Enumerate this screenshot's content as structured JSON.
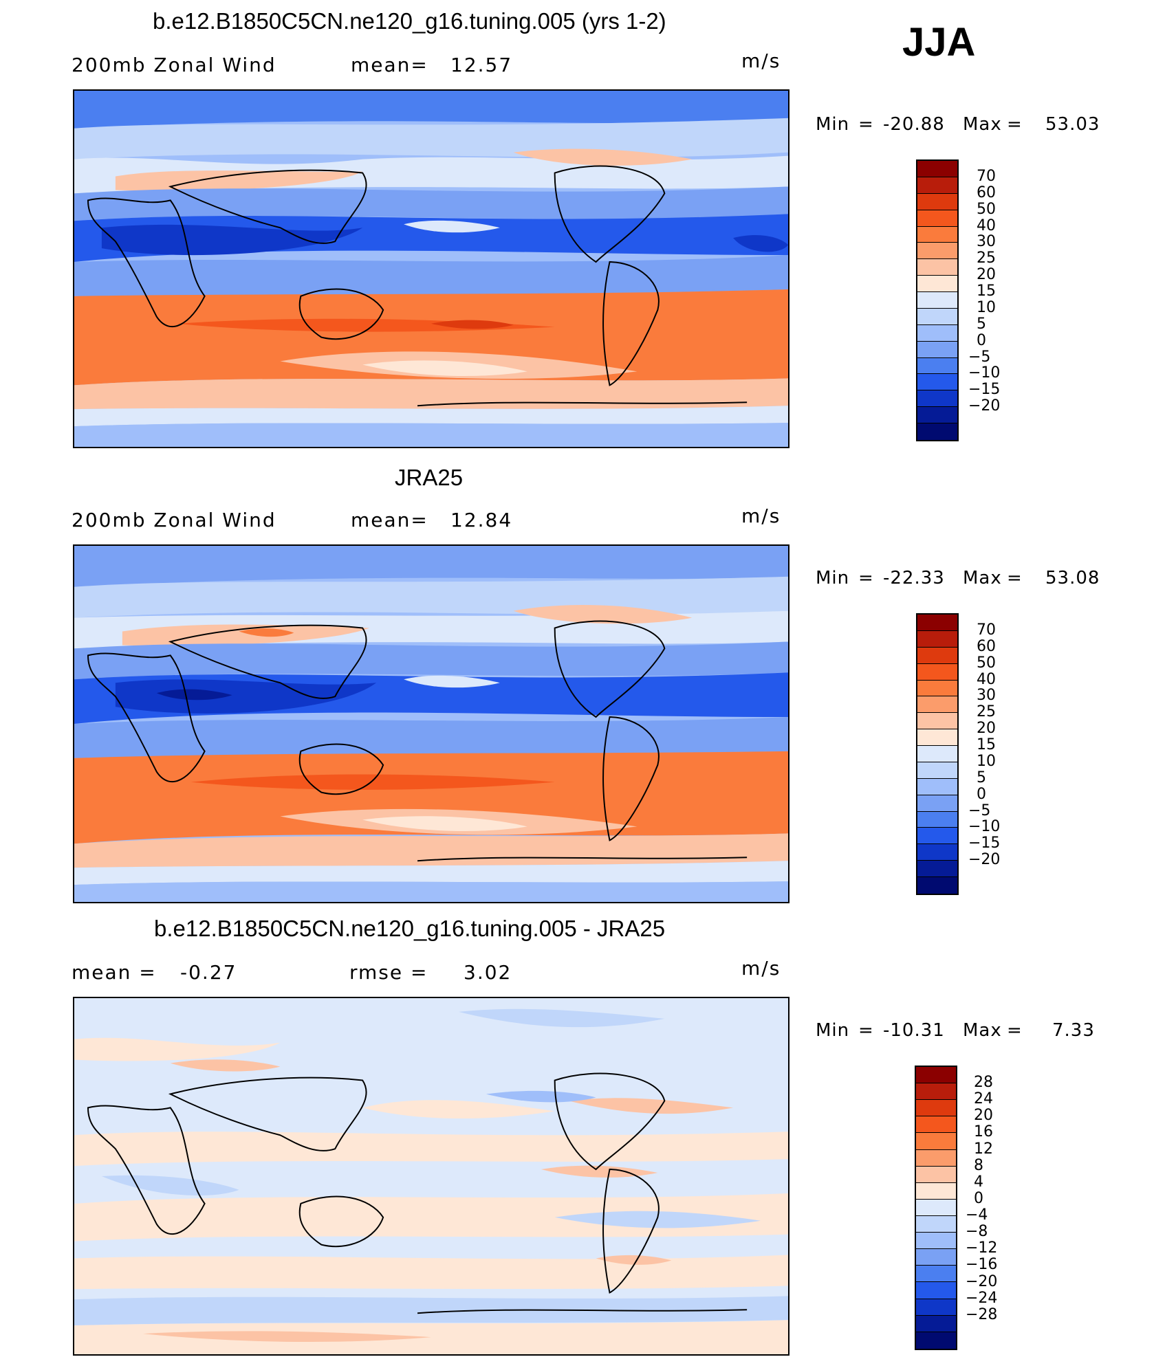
{
  "season": "JJA",
  "colors": {
    "cb1": [
      "#8b0000",
      "#b81d0b",
      "#de3a0e",
      "#f4571d",
      "#fa7b3c",
      "#fb9c6b",
      "#fcc3a5",
      "#fee7d6",
      "#dde9fb",
      "#c0d6fa",
      "#9fbefa",
      "#7aa1f4",
      "#4b7ff0",
      "#2459eb",
      "#0f37c8",
      "#051b96",
      "#000a70"
    ],
    "cb2": [
      "#8b0000",
      "#b81d0b",
      "#de3a0e",
      "#f4571d",
      "#fa7b3c",
      "#fb9c6b",
      "#fcc3a5",
      "#fee7d6",
      "#dde9fb",
      "#c0d6fa",
      "#9fbefa",
      "#7aa1f4",
      "#4b7ff0",
      "#2459eb",
      "#0f37c8",
      "#051b96",
      "#000a70"
    ],
    "cb3": [
      "#8b0000",
      "#b81d0b",
      "#de3a0e",
      "#f4571d",
      "#fa7b3c",
      "#fb9c6b",
      "#fcc3a5",
      "#fee7d6",
      "#dde9fb",
      "#c0d6fa",
      "#9fbefa",
      "#7aa1f4",
      "#4b7ff0",
      "#2459eb",
      "#0f37c8",
      "#051b96",
      "#000a70"
    ]
  },
  "panels": [
    {
      "title": "b.e12.B1850C5CN.ne120_g16.tuning.005 (yrs 1-2)",
      "left_label": "200mb Zonal Wind",
      "mean_label": "mean=",
      "mean_value": "12.57",
      "units": "m/s",
      "min_label": "Min",
      "min_value": "-20.88",
      "max_label": "Max",
      "max_value": "53.03",
      "levels": [
        "70",
        "60",
        "50",
        "40",
        "30",
        "25",
        "20",
        "15",
        "10",
        "5",
        "0",
        "-5",
        "-10",
        "-15",
        "-20"
      ]
    },
    {
      "title": "JRA25",
      "left_label": "200mb Zonal Wind",
      "mean_label": "mean=",
      "mean_value": "12.84",
      "units": "m/s",
      "min_label": "Min",
      "min_value": "-22.33",
      "max_label": "Max",
      "max_value": "53.08",
      "levels": [
        "70",
        "60",
        "50",
        "40",
        "30",
        "25",
        "20",
        "15",
        "10",
        "5",
        "0",
        "-5",
        "-10",
        "-15",
        "-20"
      ]
    },
    {
      "title": "b.e12.B1850C5CN.ne120_g16.tuning.005 - JRA25",
      "left_label": "mean =",
      "mean_label": "rmse =",
      "left_value": "-0.27",
      "mean_value": "3.02",
      "units": "m/s",
      "min_label": "Min",
      "min_value": "-10.31",
      "max_label": "Max",
      "max_value": "7.33",
      "levels": [
        "28",
        "24",
        "20",
        "16",
        "12",
        "8",
        "4",
        "0",
        "-4",
        "-8",
        "-12",
        "-16",
        "-20",
        "-24",
        "-28"
      ]
    }
  ]
}
